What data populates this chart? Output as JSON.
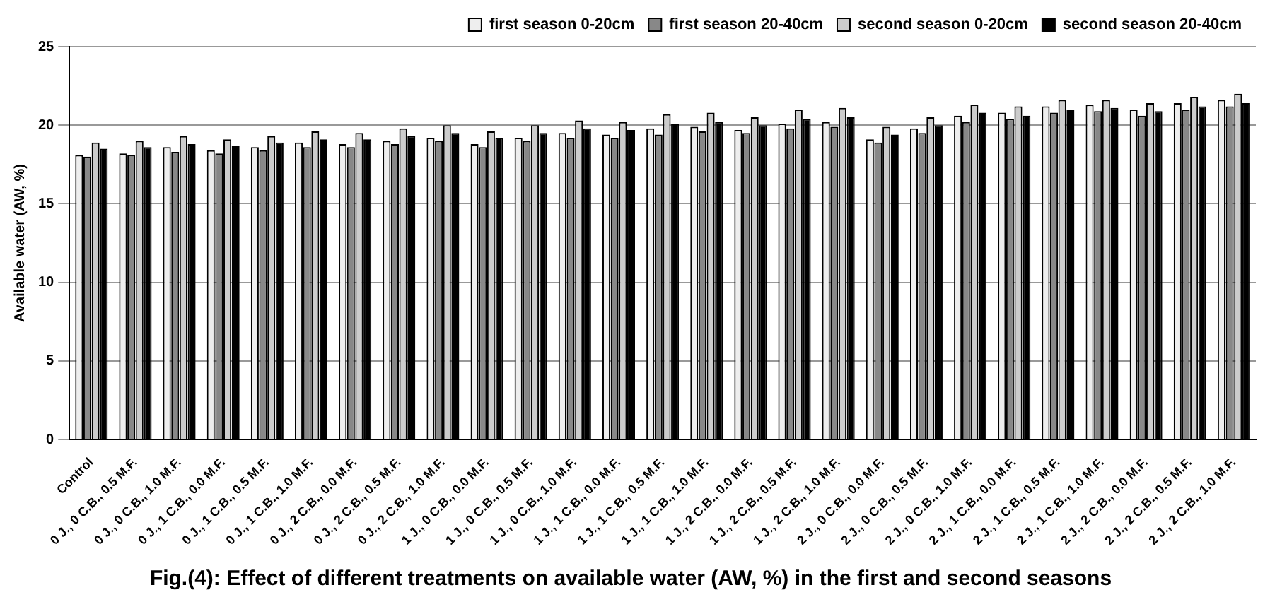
{
  "chart_data": {
    "type": "bar",
    "title": "Fig.(4): Effect of different treatments on available water (AW, %) in the first and second seasons",
    "ylabel": "Available water (AW, %)",
    "categories": [
      "Control",
      "0 J., 0 C.B., 0.5 M.F.",
      "0 J., 0 C.B., 1.0 M.F.",
      "0 J., 1 C.B., 0.0 M.F.",
      "0 J., 1 C.B., 0.5 M.F.",
      "0 J., 1 C.B., 1.0 M.F.",
      "0 J., 2 C.B., 0.0 M.F.",
      "0 J., 2 C.B., 0.5 M.F.",
      "0 J., 2 C.B., 1.0 M.F.",
      "1 J., 0 C.B., 0.0 M.F.",
      "1 J., 0 C.B., 0.5 M.F.",
      "1 J., 0 C.B., 1.0 M.F.",
      "1 J., 1 C.B., 0.0 M.F.",
      "1 J., 1 C.B., 0.5 M.F.",
      "1 J., 1 C.B., 1.0 M.F.",
      "1 J., 2 C.B., 0.0 M.F.",
      "1 J., 2 C.B., 0.5 M.F.",
      "1 J., 2 C.B., 1.0 M.F.",
      "2 J., 0 C.B., 0.0 M.F.",
      "2 J., 0 C.B., 0.5 M.F.",
      "2 J., 0 C.B., 1.0 M.F.",
      "2 J., 1 C.B., 0.0 M.F.",
      "2 J., 1 C.B., 0.5 M.F.",
      "2 J., 1 C.B., 1.0 M.F.",
      "2 J., 2 C.B., 0.0 M.F.",
      "2 J., 2 C.B., 0.5 M.F.",
      "2 J., 2 C.B., 1.0 M.F."
    ],
    "series": [
      {
        "name": "first season 0-20cm",
        "color": "#eeeeee",
        "values": [
          18.1,
          18.2,
          18.6,
          18.4,
          18.6,
          18.9,
          18.8,
          19.0,
          19.2,
          18.8,
          19.2,
          19.5,
          19.4,
          19.8,
          19.9,
          19.7,
          20.1,
          20.2,
          19.1,
          19.8,
          20.6,
          20.8,
          21.2,
          21.3,
          21.0,
          21.4,
          21.6
        ]
      },
      {
        "name": "first season 20-40cm",
        "color": "#888888",
        "values": [
          18.0,
          18.1,
          18.3,
          18.2,
          18.4,
          18.6,
          18.6,
          18.8,
          19.0,
          18.6,
          19.0,
          19.2,
          19.2,
          19.4,
          19.6,
          19.5,
          19.8,
          19.9,
          18.9,
          19.5,
          20.2,
          20.4,
          20.8,
          20.9,
          20.6,
          21.0,
          21.2
        ]
      },
      {
        "name": "second season 0-20cm",
        "color": "#cccccc",
        "values": [
          18.9,
          19.0,
          19.3,
          19.1,
          19.3,
          19.6,
          19.5,
          19.8,
          20.0,
          19.6,
          20.0,
          20.3,
          20.2,
          20.7,
          20.8,
          20.5,
          21.0,
          21.1,
          19.9,
          20.5,
          21.3,
          21.2,
          21.6,
          21.6,
          21.4,
          21.8,
          22.0
        ]
      },
      {
        "name": "second season 20-40cm",
        "color": "#000000",
        "values": [
          18.5,
          18.6,
          18.8,
          18.7,
          18.9,
          19.1,
          19.1,
          19.3,
          19.5,
          19.2,
          19.5,
          19.8,
          19.7,
          20.1,
          20.2,
          20.0,
          20.4,
          20.5,
          19.4,
          20.0,
          20.8,
          20.6,
          21.0,
          21.1,
          20.9,
          21.2,
          21.4
        ]
      }
    ],
    "ylim": [
      0,
      25
    ],
    "yticks": [
      0,
      5,
      10,
      15,
      20,
      25
    ],
    "grid": "y",
    "legend": "top right"
  }
}
